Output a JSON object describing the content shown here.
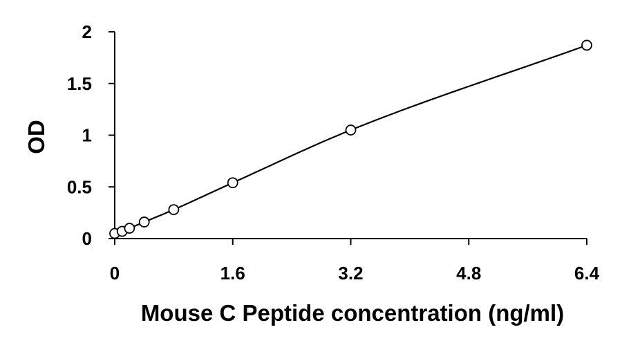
{
  "chart_data": {
    "type": "scatter",
    "title": "",
    "xlabel": "Mouse C Peptide concentration (ng/ml)",
    "ylabel": "OD",
    "xlim": [
      0,
      6.4
    ],
    "ylim": [
      0,
      2
    ],
    "xticks": [
      0,
      1.6,
      3.2,
      4.8,
      6.4
    ],
    "xtick_labels": [
      "0",
      "1.6",
      "3.2",
      "4.8",
      "6.4"
    ],
    "yticks": [
      0,
      0.5,
      1,
      1.5,
      2
    ],
    "ytick_labels": [
      "0",
      "0.5",
      "1",
      "1.5",
      "2"
    ],
    "grid": false,
    "legend": "none",
    "series": [
      {
        "x": [
          0,
          0.1,
          0.2,
          0.4,
          0.8,
          1.6,
          3.2,
          6.4
        ],
        "y": [
          0.05,
          0.07,
          0.1,
          0.16,
          0.28,
          0.54,
          1.05,
          1.87
        ],
        "marker": "open-circle",
        "fit_line": "smooth-curve"
      }
    ],
    "colors": {
      "line": "#000000",
      "marker_stroke": "#000000",
      "marker_fill": "#ffffff",
      "axis": "#000000"
    }
  }
}
